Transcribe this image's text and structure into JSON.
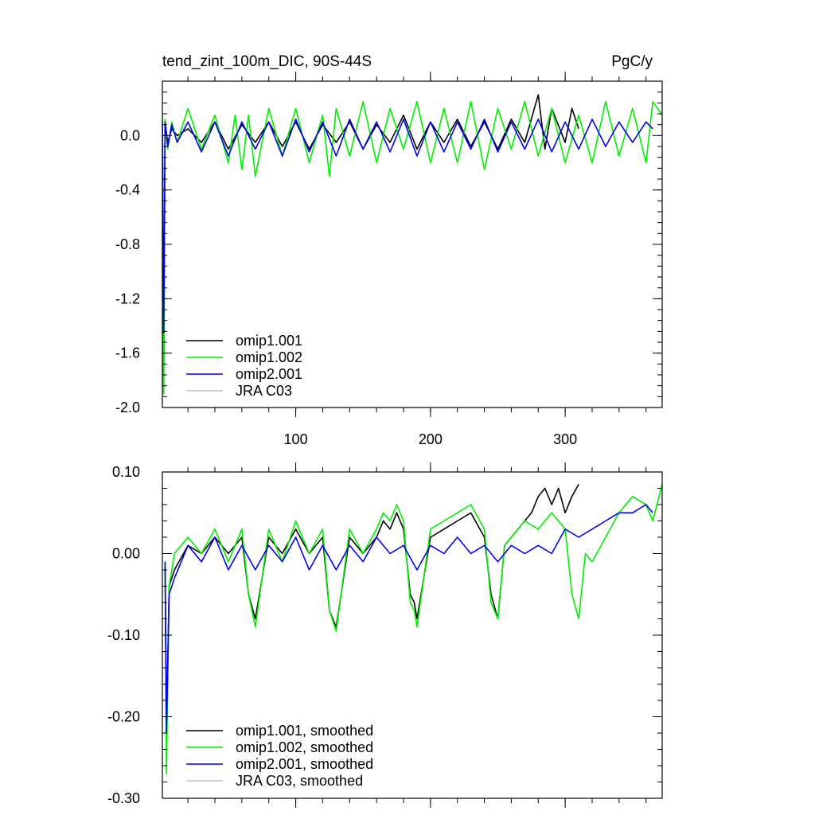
{
  "figure": {
    "title": "tend_zint_100m_DIC, 90S-44S",
    "units": "PgC/y"
  },
  "chart_data": [
    {
      "type": "line",
      "title": "tend_zint_100m_DIC, 90S-44S",
      "units_label": "PgC/y",
      "xlabel": "",
      "ylabel": "",
      "xlim": [
        1,
        372
      ],
      "ylim": [
        -2.0,
        0.4
      ],
      "xticks": [
        100,
        200,
        300
      ],
      "yticks": [
        -2.0,
        -1.6,
        -1.2,
        -0.8,
        -0.4,
        0.0
      ],
      "ytick_labels": [
        "-2.0",
        "-1.6",
        "-1.2",
        "-0.8",
        "-0.4",
        "0.0"
      ],
      "xtick_labels": [
        "100",
        "200",
        "300"
      ],
      "xtick_labels_shown": true,
      "legend_position": "bottom-left",
      "grid": false,
      "series": [
        {
          "name": "omip1.001",
          "color": "#000000",
          "x": [
            1,
            2,
            3,
            5,
            8,
            12,
            20,
            30,
            40,
            50,
            60,
            70,
            80,
            90,
            100,
            110,
            120,
            130,
            140,
            150,
            160,
            170,
            180,
            190,
            200,
            210,
            220,
            230,
            240,
            250,
            260,
            270,
            280,
            285,
            290,
            300,
            305,
            310
          ],
          "y": [
            0.1,
            -1.85,
            0.1,
            -0.05,
            0.05,
            0.0,
            0.05,
            -0.05,
            0.1,
            -0.1,
            0.08,
            -0.05,
            0.1,
            -0.08,
            0.1,
            -0.1,
            0.08,
            -0.05,
            0.1,
            -0.1,
            0.08,
            -0.05,
            0.15,
            -0.1,
            0.1,
            -0.05,
            0.12,
            -0.08,
            0.1,
            -0.1,
            0.12,
            -0.05,
            0.3,
            -0.1,
            0.2,
            -0.05,
            0.2,
            0.05
          ]
        },
        {
          "name": "omip1.002",
          "color": "#00ee00",
          "x": [
            1,
            2,
            3,
            5,
            8,
            12,
            20,
            30,
            40,
            50,
            55,
            60,
            65,
            70,
            80,
            90,
            100,
            110,
            120,
            125,
            130,
            140,
            150,
            160,
            170,
            180,
            190,
            200,
            210,
            220,
            230,
            240,
            250,
            260,
            270,
            280,
            290,
            300,
            310,
            320,
            330,
            340,
            350,
            360,
            365,
            372
          ],
          "y": [
            0.15,
            -1.9,
            0.12,
            -0.1,
            0.1,
            -0.05,
            0.2,
            -0.1,
            0.15,
            -0.2,
            0.15,
            -0.25,
            0.15,
            -0.3,
            0.2,
            -0.15,
            0.2,
            -0.2,
            0.15,
            -0.3,
            0.2,
            -0.15,
            0.25,
            -0.2,
            0.2,
            -0.1,
            0.25,
            -0.2,
            0.2,
            -0.2,
            0.25,
            -0.25,
            0.2,
            -0.1,
            0.25,
            -0.15,
            0.2,
            -0.2,
            0.15,
            -0.2,
            0.25,
            -0.15,
            0.2,
            -0.2,
            0.25,
            0.15
          ]
        },
        {
          "name": "omip2.001",
          "color": "#0000ee",
          "x": [
            1,
            2,
            3,
            5,
            8,
            12,
            20,
            30,
            40,
            50,
            60,
            70,
            80,
            90,
            100,
            110,
            120,
            130,
            140,
            150,
            160,
            170,
            180,
            190,
            200,
            210,
            220,
            230,
            240,
            250,
            260,
            270,
            280,
            290,
            300,
            310,
            320,
            330,
            340,
            350,
            360,
            365
          ],
          "y": [
            0.1,
            -1.45,
            0.1,
            -0.08,
            0.08,
            -0.05,
            0.1,
            -0.12,
            0.1,
            -0.15,
            0.1,
            -0.1,
            0.1,
            -0.15,
            0.12,
            -0.12,
            0.1,
            -0.15,
            0.12,
            -0.1,
            0.1,
            -0.12,
            0.12,
            -0.15,
            0.1,
            -0.12,
            0.1,
            -0.1,
            0.12,
            -0.12,
            0.1,
            -0.1,
            0.12,
            -0.12,
            0.1,
            -0.1,
            0.12,
            -0.08,
            0.1,
            -0.05,
            0.1,
            0.05
          ]
        },
        {
          "name": "JRA C03",
          "color": "#c0c0c0",
          "x": [],
          "y": []
        }
      ]
    },
    {
      "type": "line",
      "title": "",
      "xlabel": "",
      "ylabel": "",
      "xlim": [
        1,
        372
      ],
      "ylim": [
        -0.3,
        0.1
      ],
      "xticks": [
        100,
        200,
        300
      ],
      "yticks": [
        -0.3,
        -0.2,
        -0.1,
        0.0,
        0.1
      ],
      "ytick_labels": [
        "-0.30",
        "-0.20",
        "-0.10",
        "0.00",
        "0.10"
      ],
      "xtick_labels": [],
      "xtick_labels_shown": false,
      "legend_position": "bottom-left",
      "grid": false,
      "series": [
        {
          "name": "omip1.001, smoothed",
          "color": "#000000",
          "x": [
            3,
            4,
            6,
            10,
            20,
            30,
            40,
            50,
            60,
            65,
            70,
            80,
            90,
            100,
            110,
            120,
            125,
            130,
            140,
            150,
            160,
            165,
            170,
            175,
            180,
            185,
            188,
            190,
            200,
            210,
            220,
            230,
            240,
            245,
            250,
            255,
            260,
            270,
            275,
            280,
            285,
            290,
            295,
            300,
            305,
            310
          ],
          "y": [
            -0.01,
            -0.22,
            -0.04,
            -0.02,
            0.01,
            0.0,
            0.02,
            0.0,
            0.02,
            -0.05,
            -0.08,
            0.02,
            0.0,
            0.03,
            0.0,
            0.02,
            -0.07,
            -0.09,
            0.02,
            0.0,
            0.02,
            0.04,
            0.03,
            0.05,
            0.03,
            -0.05,
            -0.06,
            -0.08,
            0.02,
            0.03,
            0.04,
            0.05,
            0.02,
            -0.05,
            -0.08,
            0.01,
            0.02,
            0.04,
            0.05,
            0.07,
            0.08,
            0.06,
            0.08,
            0.05,
            0.07,
            0.085
          ]
        },
        {
          "name": "omip1.002, smoothed",
          "color": "#00ee00",
          "x": [
            3,
            4,
            6,
            10,
            20,
            30,
            40,
            50,
            60,
            65,
            70,
            80,
            90,
            100,
            110,
            120,
            125,
            130,
            140,
            150,
            160,
            165,
            170,
            175,
            180,
            185,
            188,
            190,
            200,
            210,
            220,
            230,
            240,
            245,
            250,
            255,
            260,
            270,
            280,
            290,
            300,
            305,
            310,
            315,
            320,
            330,
            340,
            350,
            360,
            365,
            372
          ],
          "y": [
            -0.01,
            -0.27,
            -0.04,
            0.0,
            0.02,
            0.0,
            0.03,
            -0.01,
            0.03,
            -0.05,
            -0.09,
            0.03,
            -0.01,
            0.04,
            0.0,
            0.03,
            -0.07,
            -0.095,
            0.03,
            0.0,
            0.03,
            0.05,
            0.04,
            0.06,
            0.04,
            -0.06,
            -0.07,
            -0.09,
            0.03,
            0.04,
            0.05,
            0.06,
            0.03,
            -0.06,
            -0.08,
            0.01,
            0.02,
            0.04,
            0.03,
            0.05,
            0.03,
            -0.05,
            -0.08,
            0.0,
            -0.01,
            0.02,
            0.05,
            0.07,
            0.06,
            0.04,
            0.085
          ]
        },
        {
          "name": "omip2.001, smoothed",
          "color": "#0000ee",
          "x": [
            3,
            4,
            6,
            10,
            20,
            30,
            40,
            50,
            60,
            70,
            80,
            90,
            100,
            110,
            120,
            130,
            140,
            150,
            160,
            170,
            180,
            190,
            200,
            210,
            220,
            230,
            240,
            250,
            260,
            270,
            280,
            290,
            300,
            310,
            320,
            330,
            340,
            350,
            360,
            365
          ],
          "y": [
            -0.01,
            -0.22,
            -0.05,
            -0.03,
            0.01,
            -0.01,
            0.02,
            -0.02,
            0.01,
            -0.02,
            0.01,
            -0.01,
            0.02,
            -0.02,
            0.01,
            -0.02,
            0.01,
            -0.01,
            0.02,
            0.0,
            0.01,
            -0.02,
            0.01,
            0.0,
            0.02,
            0.0,
            0.01,
            -0.01,
            0.01,
            0.0,
            0.01,
            0.0,
            0.03,
            0.02,
            0.03,
            0.04,
            0.05,
            0.05,
            0.06,
            0.05
          ]
        },
        {
          "name": "JRA C03, smoothed",
          "color": "#c0c0c0",
          "x": [],
          "y": []
        }
      ]
    }
  ]
}
